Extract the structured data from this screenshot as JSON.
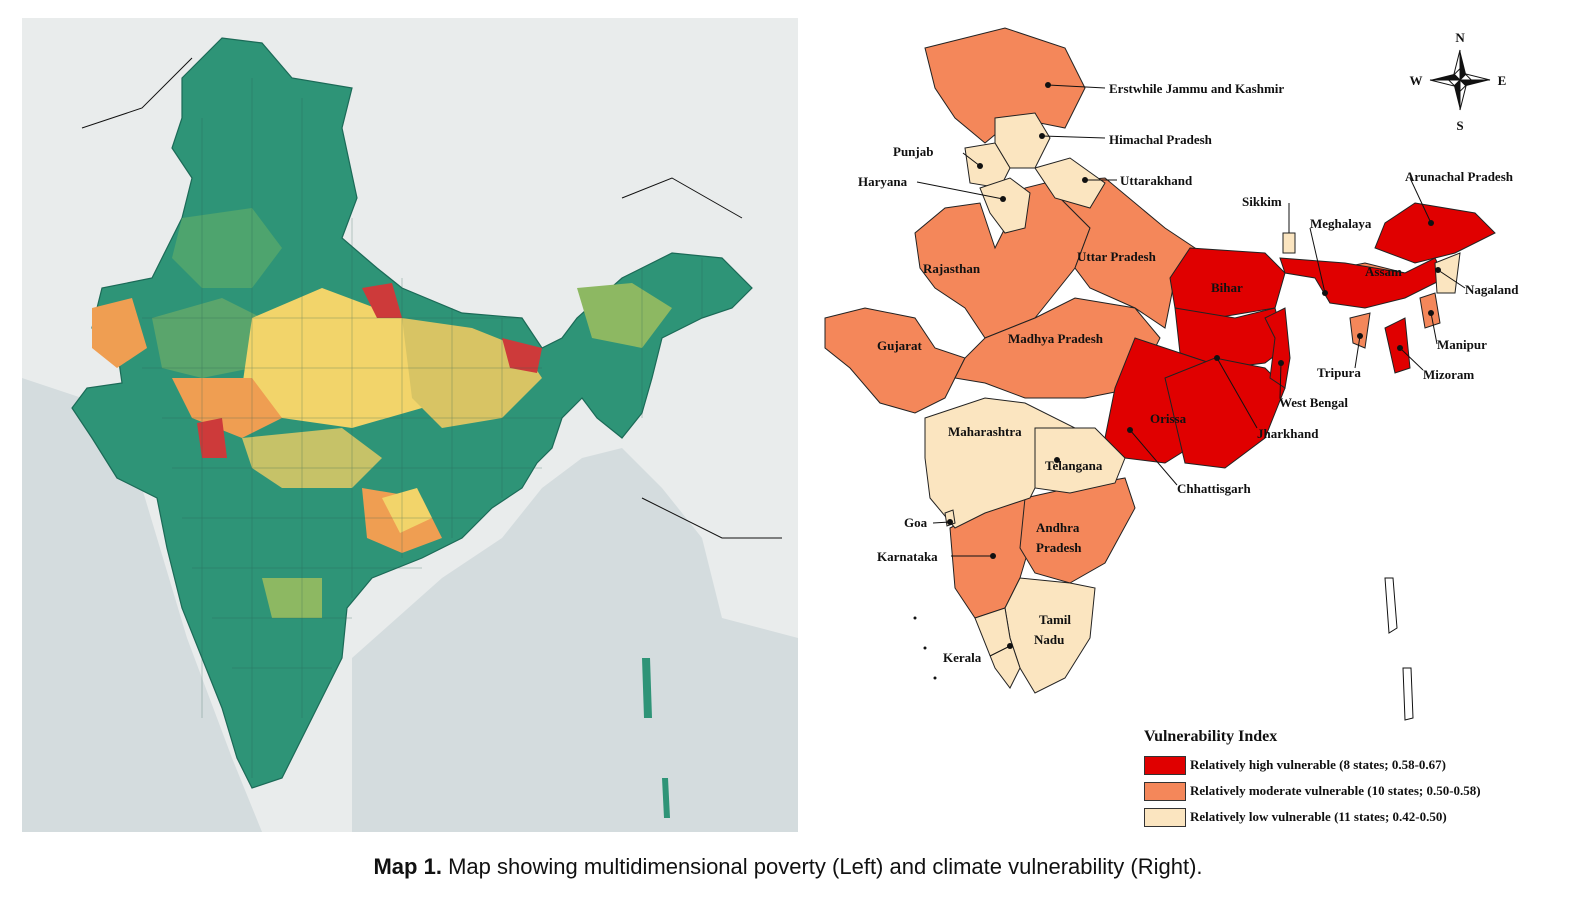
{
  "caption": {
    "prefix": "Map 1.",
    "text": "Map showing multidimensional poverty (Left) and climate vulnerability (Right)."
  },
  "left_map": {
    "colors": {
      "background": "#e9ecec",
      "sea": "#d4dcde",
      "low_poverty": "#1e8a74",
      "mid_green": "#4ea46e",
      "light_green": "#8db862",
      "yellow": "#f2d46a",
      "orange": "#ef9e52",
      "red": "#cd3a3a"
    }
  },
  "right_map": {
    "compass": {
      "n": "N",
      "s": "S",
      "e": "E",
      "w": "W"
    },
    "state_labels": [
      "Erstwhile Jammu and Kashmir",
      "Himachal Pradesh",
      "Punjab",
      "Haryana",
      "Uttarakhand",
      "Sikkim",
      "Arunachal Pradesh",
      "Meghalaya",
      "Assam",
      "Nagaland",
      "Rajasthan",
      "Uttar Pradesh",
      "Bihar",
      "Gujarat",
      "Madhya Pradesh",
      "Manipur",
      "Tripura",
      "Mizoram",
      "West Bengal",
      "Maharashtra",
      "Orissa",
      "Jharkhand",
      "Telangana",
      "Chhattisgarh",
      "Goa",
      "Andhra",
      "Pradesh",
      "Karnataka",
      "Tamil",
      "Nadu",
      "Kerala"
    ],
    "colors": {
      "high": "#e00000",
      "moderate": "#f4875a",
      "low": "#fbe5c0"
    }
  },
  "legend": {
    "title": "Vulnerability Index",
    "items": [
      {
        "label": "Relatively high vulnerable (8 states; 0.58-0.67)",
        "color": "#e00000"
      },
      {
        "label": "Relatively moderate vulnerable (10 states; 0.50-0.58)",
        "color": "#f4875a"
      },
      {
        "label": "Relatively low vulnerable (11 states; 0.42-0.50)",
        "color": "#fbe5c0"
      }
    ]
  }
}
